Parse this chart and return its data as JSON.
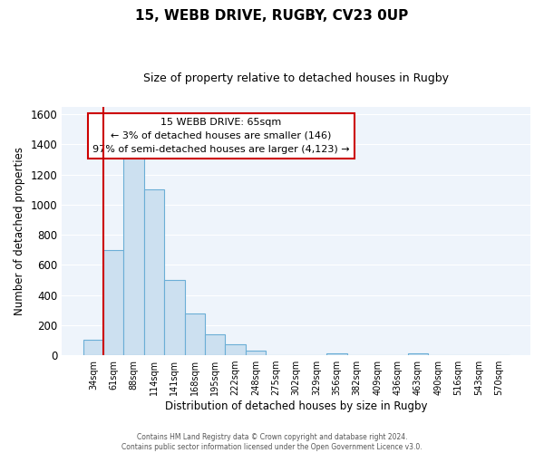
{
  "title": "15, WEBB DRIVE, RUGBY, CV23 0UP",
  "subtitle": "Size of property relative to detached houses in Rugby",
  "xlabel": "Distribution of detached houses by size in Rugby",
  "ylabel": "Number of detached properties",
  "footer_line1": "Contains HM Land Registry data © Crown copyright and database right 2024.",
  "footer_line2": "Contains public sector information licensed under the Open Government Licence v3.0.",
  "bar_labels": [
    "34sqm",
    "61sqm",
    "88sqm",
    "114sqm",
    "141sqm",
    "168sqm",
    "195sqm",
    "222sqm",
    "248sqm",
    "275sqm",
    "302sqm",
    "329sqm",
    "356sqm",
    "382sqm",
    "409sqm",
    "436sqm",
    "463sqm",
    "490sqm",
    "516sqm",
    "543sqm",
    "570sqm"
  ],
  "bar_values": [
    100,
    700,
    1330,
    1100,
    500,
    280,
    140,
    75,
    30,
    0,
    0,
    0,
    15,
    0,
    0,
    0,
    10,
    0,
    0,
    0,
    0
  ],
  "bar_fill_color": "#cce0f0",
  "bar_edge_color": "#6baed6",
  "highlight_color": "#cc0000",
  "annotation_line0": "15 WEBB DRIVE: 65sqm",
  "annotation_line1": "← 3% of detached houses are smaller (146)",
  "annotation_line2": "97% of semi-detached houses are larger (4,123) →",
  "annotation_box_color": "#ffffff",
  "annotation_box_edge": "#cc0000",
  "ylim": [
    0,
    1650
  ],
  "yticks": [
    0,
    200,
    400,
    600,
    800,
    1000,
    1200,
    1400,
    1600
  ],
  "background_color": "#ffffff",
  "plot_bg_color": "#eef4fb",
  "grid_color": "#ffffff"
}
